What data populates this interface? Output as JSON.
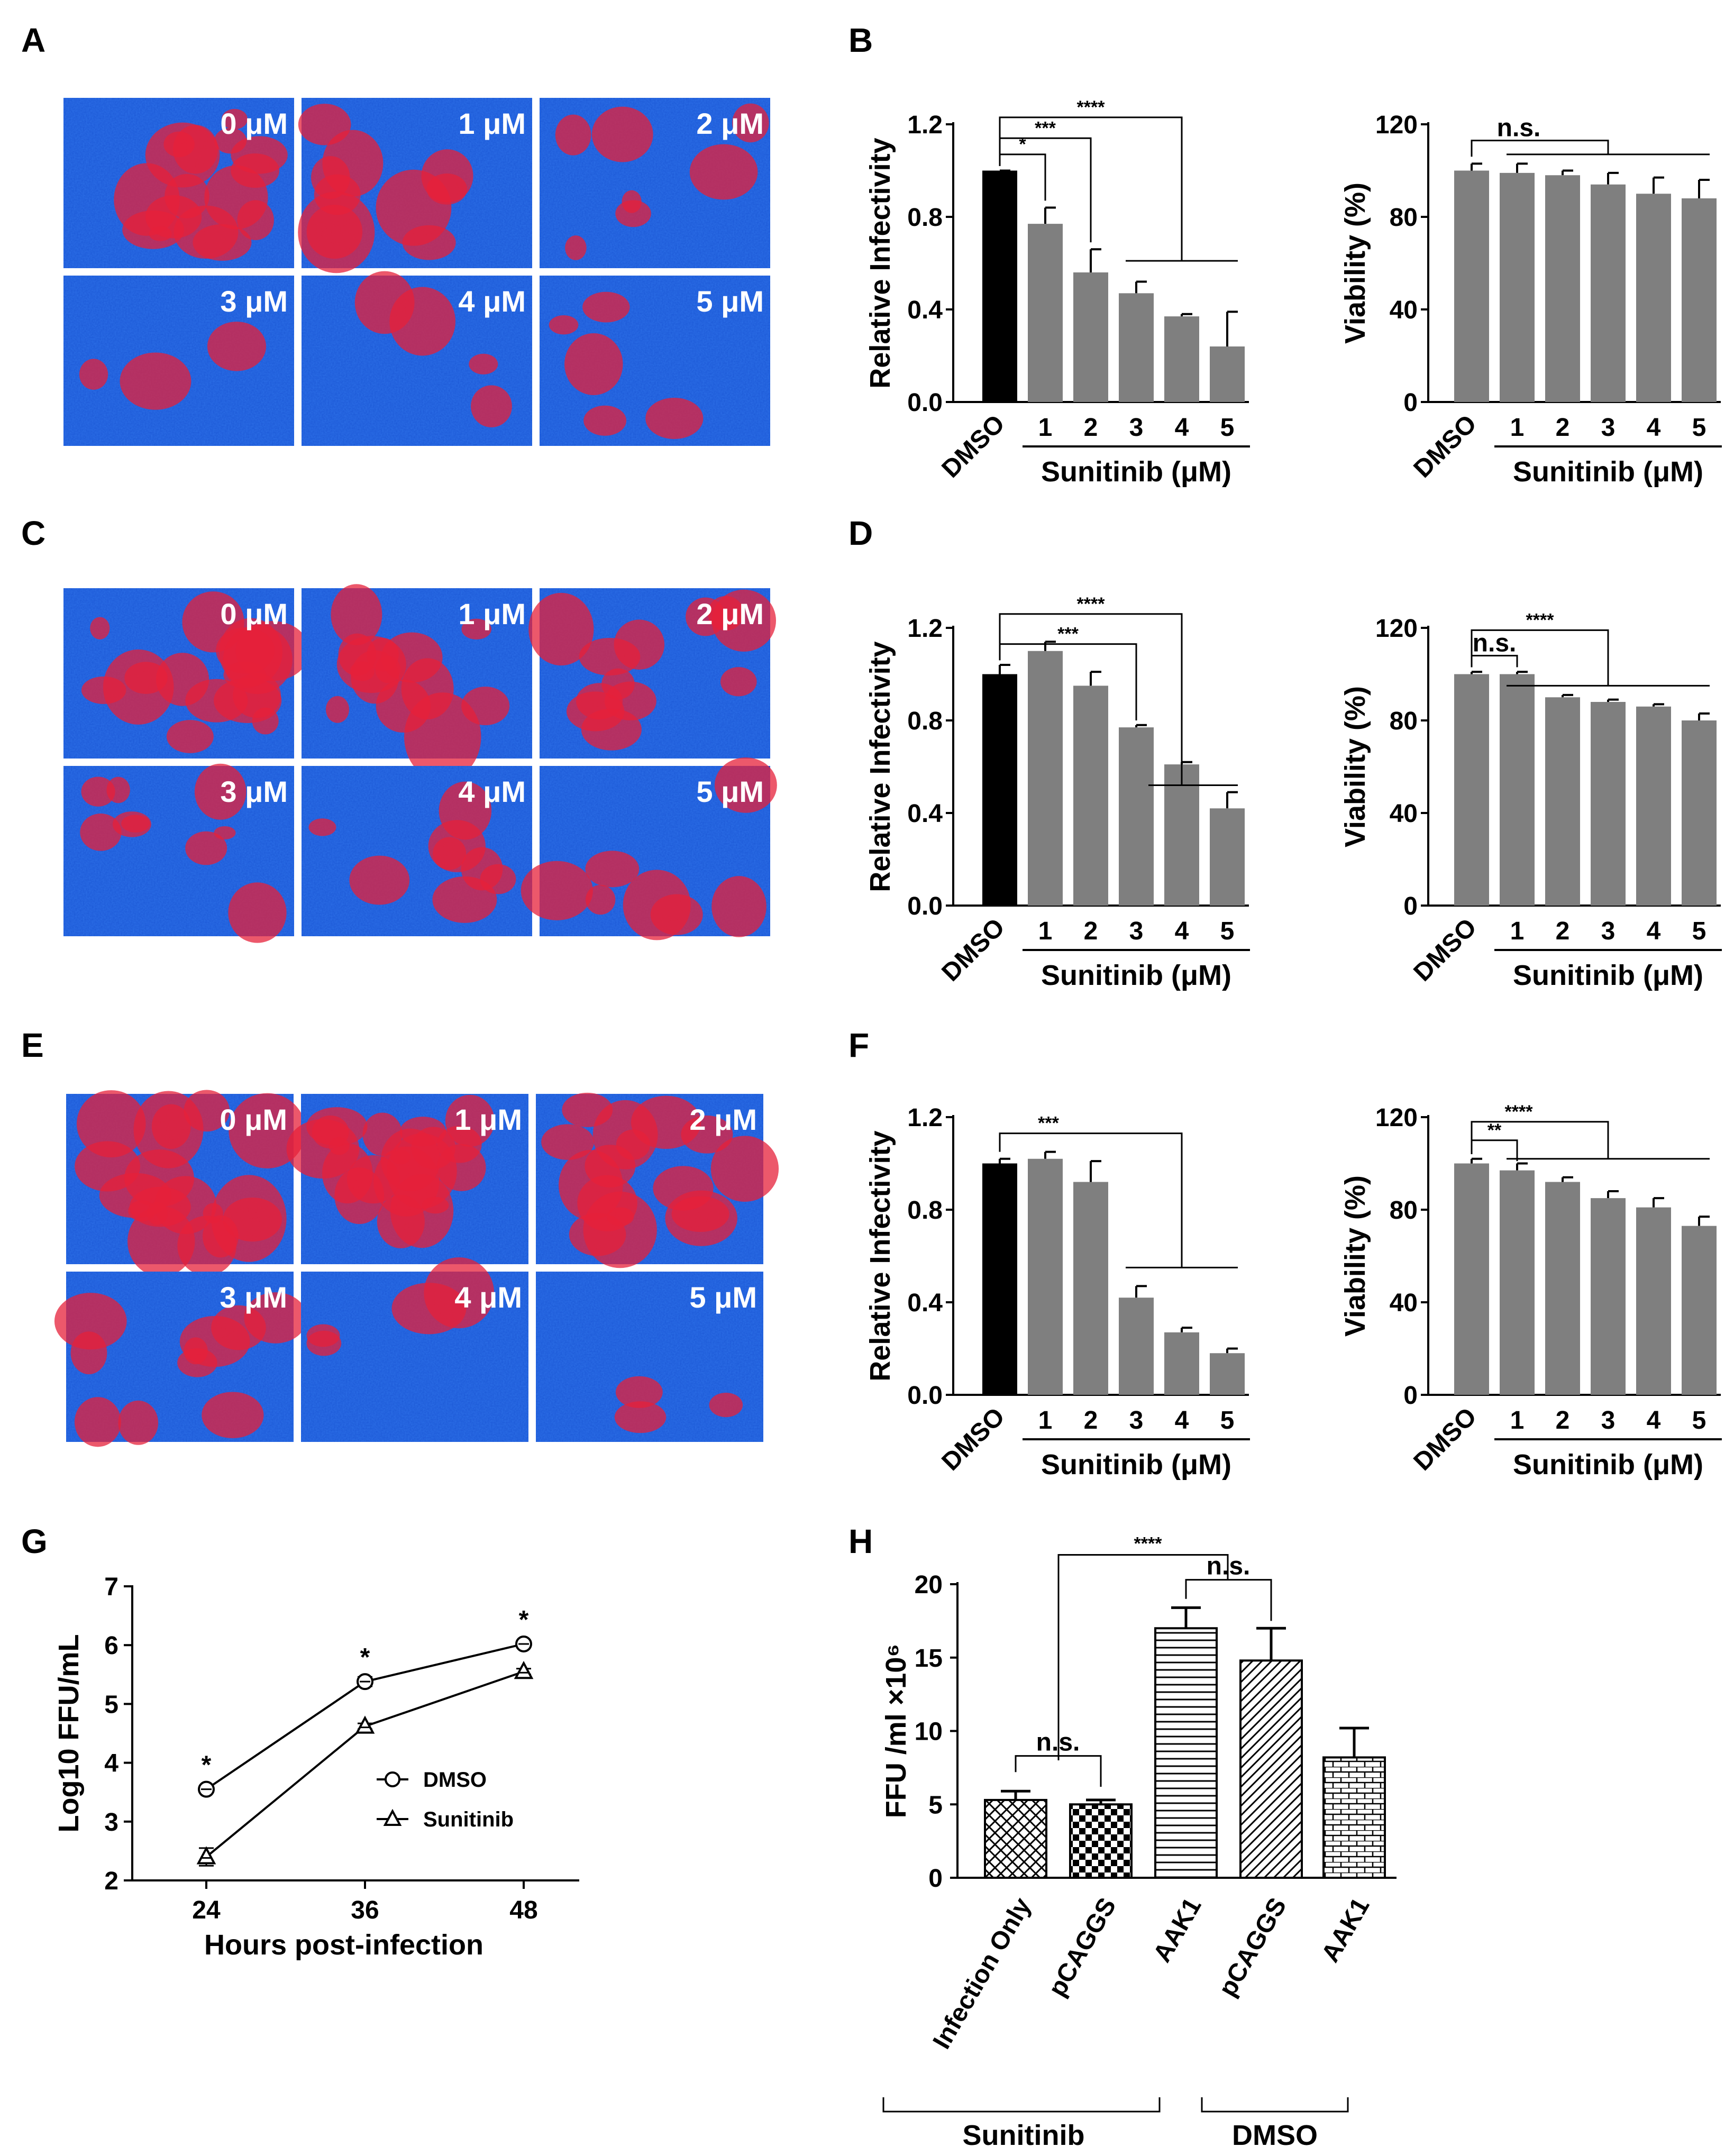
{
  "panels": {
    "A": {
      "letter": "A",
      "doses": [
        "0 μM",
        "1 μM",
        "2 μM",
        "3 μM",
        "4 μM",
        "5 μM"
      ]
    },
    "C": {
      "letter": "C",
      "doses": [
        "0 μM",
        "1 μM",
        "2 μM",
        "3 μM",
        "4 μM",
        "5 μM"
      ]
    },
    "E": {
      "letter": "E",
      "doses": [
        "0 μM",
        "1 μM",
        "2 μM",
        "3 μM",
        "4 μM",
        "5 μM"
      ]
    },
    "B": {
      "letter": "B"
    },
    "D": {
      "letter": "D"
    },
    "F": {
      "letter": "F"
    },
    "G": {
      "letter": "G"
    },
    "H": {
      "letter": "H"
    }
  },
  "colors": {
    "black_bar": "#000000",
    "gray_bar": "#7f7f7f",
    "nuclei": "#1e5bd8",
    "infection": "#e6203a"
  },
  "chart_data": [
    {
      "id": "B1",
      "type": "bar",
      "categories": [
        "DMSO",
        "1",
        "2",
        "3",
        "4",
        "5"
      ],
      "values": [
        1.0,
        0.77,
        0.56,
        0.47,
        0.37,
        0.24
      ],
      "errors": [
        0.0,
        0.07,
        0.1,
        0.05,
        0.01,
        0.15
      ],
      "ylabel": "Relative Infectivity",
      "xlabel": "Sunitinib (μM)",
      "ylim": [
        0,
        1.2
      ],
      "yticks": [
        "0.0",
        "0.4",
        "0.8",
        "1.2"
      ],
      "significance": [
        "*",
        "***",
        "****"
      ]
    },
    {
      "id": "B2",
      "type": "bar",
      "categories": [
        "DMSO",
        "1",
        "2",
        "3",
        "4",
        "5"
      ],
      "values": [
        100,
        99,
        98,
        94,
        90,
        88
      ],
      "errors": [
        3,
        4,
        2,
        5,
        7,
        8
      ],
      "ylabel": "Viability (%)",
      "xlabel": "Sunitinib (μM)",
      "ylim": [
        0,
        120
      ],
      "yticks": [
        "0",
        "40",
        "80",
        "120"
      ],
      "significance": [
        "n.s."
      ]
    },
    {
      "id": "D1",
      "type": "bar",
      "categories": [
        "DMSO",
        "1",
        "2",
        "3",
        "4",
        "5"
      ],
      "values": [
        1.0,
        1.1,
        0.95,
        0.77,
        0.61,
        0.42
      ],
      "errors": [
        0.04,
        0.04,
        0.06,
        0.01,
        0.01,
        0.07
      ],
      "ylabel": "Relative Infectivity",
      "xlabel": "Sunitinib (μM)",
      "ylim": [
        0,
        1.2
      ],
      "yticks": [
        "0.0",
        "0.4",
        "0.8",
        "1.2"
      ],
      "significance": [
        "***",
        "****"
      ]
    },
    {
      "id": "D2",
      "type": "bar",
      "categories": [
        "DMSO",
        "1",
        "2",
        "3",
        "4",
        "5"
      ],
      "values": [
        100,
        100,
        90,
        88,
        86,
        80
      ],
      "errors": [
        1,
        1,
        1,
        1,
        1,
        3
      ],
      "ylabel": "Viability (%)",
      "xlabel": "Sunitinib (μM)",
      "ylim": [
        0,
        120
      ],
      "yticks": [
        "0",
        "40",
        "80",
        "120"
      ],
      "significance": [
        "n.s.",
        "****"
      ]
    },
    {
      "id": "F1",
      "type": "bar",
      "categories": [
        "DMSO",
        "1",
        "2",
        "3",
        "4",
        "5"
      ],
      "values": [
        1.0,
        1.02,
        0.92,
        0.42,
        0.27,
        0.18
      ],
      "errors": [
        0.02,
        0.03,
        0.09,
        0.05,
        0.02,
        0.02
      ],
      "ylabel": "Relative Infectivity",
      "xlabel": "Sunitinib (μM)",
      "ylim": [
        0,
        1.2
      ],
      "yticks": [
        "0.0",
        "0.4",
        "0.8",
        "1.2"
      ],
      "significance": [
        "***"
      ]
    },
    {
      "id": "F2",
      "type": "bar",
      "categories": [
        "DMSO",
        "1",
        "2",
        "3",
        "4",
        "5"
      ],
      "values": [
        100,
        97,
        92,
        85,
        81,
        73
      ],
      "errors": [
        2,
        3,
        2,
        3,
        4,
        4
      ],
      "ylabel": "Viability (%)",
      "xlabel": "Sunitinib (μM)",
      "ylim": [
        0,
        120
      ],
      "yticks": [
        "0",
        "40",
        "80",
        "120"
      ],
      "significance": [
        "**",
        "****"
      ]
    },
    {
      "id": "G",
      "type": "line",
      "x": [
        24,
        36,
        48
      ],
      "series": [
        {
          "name": "DMSO",
          "marker": "circle",
          "values": [
            3.55,
            5.38,
            6.02
          ],
          "errors": [
            0.05,
            0.08,
            0.05
          ]
        },
        {
          "name": "Sunitinib",
          "marker": "triangle",
          "values": [
            2.4,
            4.62,
            5.55
          ],
          "errors": [
            0.15,
            0.05,
            0.05
          ]
        }
      ],
      "significance": [
        "*",
        "*",
        "*"
      ],
      "xlabel": "Hours post-infection",
      "ylabel": "Log10 FFU/mL",
      "ylim": [
        2,
        7
      ],
      "yticks": [
        "2",
        "3",
        "4",
        "5",
        "6",
        "7"
      ],
      "xticks": [
        "24",
        "36",
        "48"
      ]
    },
    {
      "id": "H",
      "type": "bar",
      "categories": [
        "Infection Only",
        "pCAGGS",
        "AAK1",
        "pCAGGS",
        "AAK1"
      ],
      "values": [
        5.3,
        5.0,
        17.0,
        14.8,
        8.2
      ],
      "errors": [
        0.6,
        0.3,
        1.4,
        2.2,
        2.0
      ],
      "patterns": [
        "crosshatch",
        "checker",
        "horizontal",
        "diagonal",
        "brick"
      ],
      "groups": [
        "Sunitinib",
        "DMSO"
      ],
      "ylabel": "FFU /ml ×10⁶",
      "ylim": [
        0,
        20
      ],
      "yticks": [
        "0",
        "5",
        "10",
        "15",
        "20"
      ],
      "significance": [
        "n.s.",
        "****",
        "n.s."
      ]
    }
  ]
}
